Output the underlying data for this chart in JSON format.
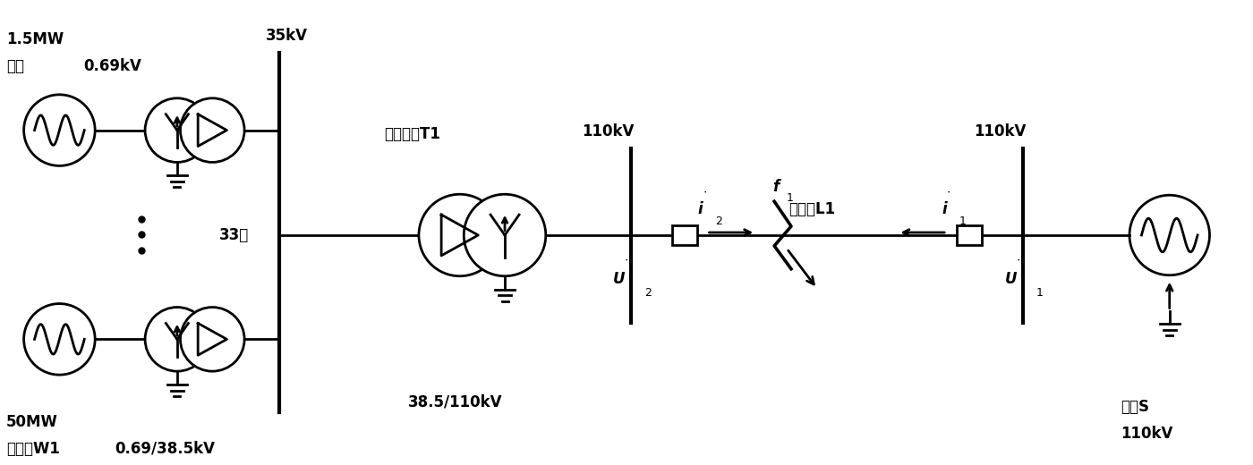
{
  "bg_color": "#ffffff",
  "line_color": "#000000",
  "lw": 2.0,
  "fig_width": 14.0,
  "fig_height": 5.2,
  "dpi": 100,
  "labels": {
    "wind_power": "1.5MW",
    "wind_turbine": "风机",
    "low_voltage": "0.69kV",
    "bus_35kV": "35kV",
    "count": "33台",
    "total_power": "50MW",
    "wind_farm": "风电场W1",
    "transformer_voltage": "0.69/38.5kV",
    "main_transformer": "风场主变T1",
    "ratio": "38.5/110kV",
    "left_110kV": "110kV",
    "right_110kV": "110kV",
    "line_label": "送出线L1",
    "system": "系统S",
    "system_voltage": "110kV"
  }
}
